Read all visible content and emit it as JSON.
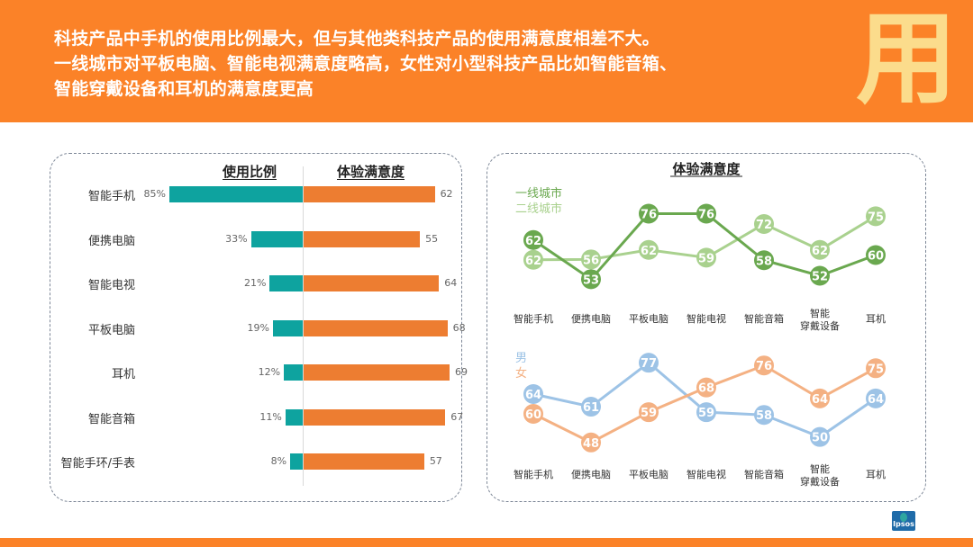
{
  "header": {
    "lines": [
      "科技产品中手机的使用比例最大，但与其他类科技产品的使用满意度相差不大。",
      "一线城市对平板电脑、智能电视满意度略高，女性对小型科技产品比如智能音箱、",
      "智能穿戴设备和耳机的满意度更高"
    ],
    "decorative_char": "用",
    "background_color": "#fb8228"
  },
  "logo": {
    "text": "Ipsos"
  },
  "chart_data": [
    {
      "type": "bar",
      "title": "",
      "layout": "diverging-horizontal",
      "categories": [
        "智能手机",
        "便携电脑",
        "智能电视",
        "平板电脑",
        "耳机",
        "智能音箱",
        "智能手环/手表"
      ],
      "series": [
        {
          "name": "使用比例",
          "values": [
            85,
            33,
            21,
            19,
            12,
            11,
            8
          ],
          "labels": [
            "85%",
            "33%",
            "21%",
            "19%",
            "12%",
            "11%",
            "8%"
          ],
          "color": "#0ea39f",
          "unit": "%"
        },
        {
          "name": "体验满意度",
          "values": [
            62,
            55,
            64,
            68,
            69,
            67,
            57
          ],
          "labels": [
            "62",
            "55",
            "64",
            "68",
            "69",
            "67",
            "57"
          ],
          "color": "#ed7d31"
        }
      ],
      "xlabel": "",
      "ylabel": "",
      "grid": false
    },
    {
      "type": "line",
      "title": "体验满意度",
      "categories": [
        "智能手机",
        "便携电脑",
        "平板电脑",
        "智能电视",
        "智能音箱",
        "智能\n穿戴设备",
        "耳机"
      ],
      "category_lines": [
        [
          "智能手机"
        ],
        [
          "便携电脑"
        ],
        [
          "平板电脑"
        ],
        [
          "智能电视"
        ],
        [
          "智能音箱"
        ],
        [
          "智能",
          "穿戴设备"
        ],
        [
          "耳机"
        ]
      ],
      "series": [
        {
          "name": "一线城市",
          "values": [
            62,
            53,
            76,
            76,
            58,
            52,
            60
          ],
          "color": "#6aa84f"
        },
        {
          "name": "二线城市",
          "values": [
            62,
            56,
            62,
            59,
            72,
            62,
            75
          ],
          "color": "#a9d18e"
        }
      ],
      "legend": "top-left",
      "ylim": [
        48,
        80
      ],
      "grid": false
    },
    {
      "type": "line",
      "title": "",
      "categories": [
        "智能手机",
        "便携电脑",
        "平板电脑",
        "智能电视",
        "智能音箱",
        "智能\n穿戴设备",
        "耳机"
      ],
      "category_lines": [
        [
          "智能手机"
        ],
        [
          "便携电脑"
        ],
        [
          "平板电脑"
        ],
        [
          "智能电视"
        ],
        [
          "智能音箱"
        ],
        [
          "智能",
          "穿戴设备"
        ],
        [
          "耳机"
        ]
      ],
      "series": [
        {
          "name": "男",
          "values": [
            64,
            61,
            77,
            59,
            58,
            50,
            64
          ],
          "color": "#9dc3e6"
        },
        {
          "name": "女",
          "values": [
            60,
            48,
            59,
            68,
            76,
            64,
            75
          ],
          "color": "#f4b183"
        }
      ],
      "legend": "top-left",
      "ylim": [
        44,
        80
      ],
      "grid": false
    }
  ]
}
